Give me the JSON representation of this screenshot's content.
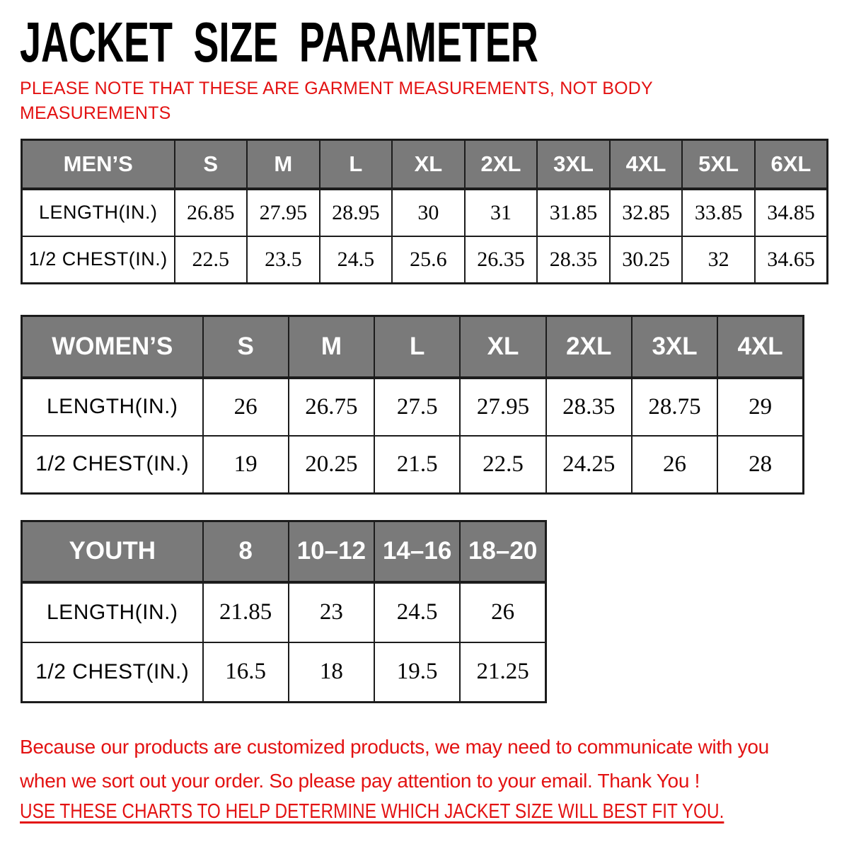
{
  "title": "JACKET SIZE PARAMETER",
  "note": {
    "line1": "PLEASE NOTE THAT THESE ARE GARMENT MEASUREMENTS, NOT BODY",
    "line2": "MEASUREMENTS"
  },
  "tables": [
    {
      "id": "mens",
      "group_label": "MEN’S",
      "sizes": [
        "S",
        "M",
        "L",
        "XL",
        "2XL",
        "3XL",
        "4XL",
        "5XL",
        "6XL"
      ],
      "rows": [
        {
          "label": "LENGTH(IN.)",
          "values": [
            "26.85",
            "27.95",
            "28.95",
            "30",
            "31",
            "31.85",
            "32.85",
            "33.85",
            "34.85"
          ]
        },
        {
          "label": "1/2 CHEST(IN.)",
          "values": [
            "22.5",
            "23.5",
            "24.5",
            "25.6",
            "26.35",
            "28.35",
            "30.25",
            "32",
            "34.65"
          ]
        }
      ]
    },
    {
      "id": "womens",
      "group_label": "WOMEN’S",
      "sizes": [
        "S",
        "M",
        "L",
        "XL",
        "2XL",
        "3XL",
        "4XL"
      ],
      "rows": [
        {
          "label": "LENGTH(IN.)",
          "values": [
            "26",
            "26.75",
            "27.5",
            "27.95",
            "28.35",
            "28.75",
            "29"
          ]
        },
        {
          "label": "1/2 CHEST(IN.)",
          "values": [
            "19",
            "20.25",
            "21.5",
            "22.5",
            "24.25",
            "26",
            "28"
          ]
        }
      ]
    },
    {
      "id": "youth",
      "group_label": "YOUTH",
      "sizes": [
        "8",
        "10–12",
        "14–16",
        "18–20"
      ],
      "rows": [
        {
          "label": "LENGTH(IN.)",
          "values": [
            "21.85",
            "23",
            "24.5",
            "26"
          ]
        },
        {
          "label": "1/2 CHEST(IN.)",
          "values": [
            "16.5",
            "18",
            "19.5",
            "21.25"
          ]
        }
      ]
    }
  ],
  "footer": {
    "para_line1": "Because our products are customized products, we may need to communicate with you",
    "para_line2": "when we sort out your order. So please pay attention to your email. Thank You !",
    "use_charts": "USE THESE CHARTS TO HELP DETERMINE WHICH JACKET SIZE WILL BEST FIT YOU."
  },
  "colors": {
    "header_bg": "#7a7a7a",
    "red_text": "#e31212",
    "border": "#1c1c1c"
  }
}
